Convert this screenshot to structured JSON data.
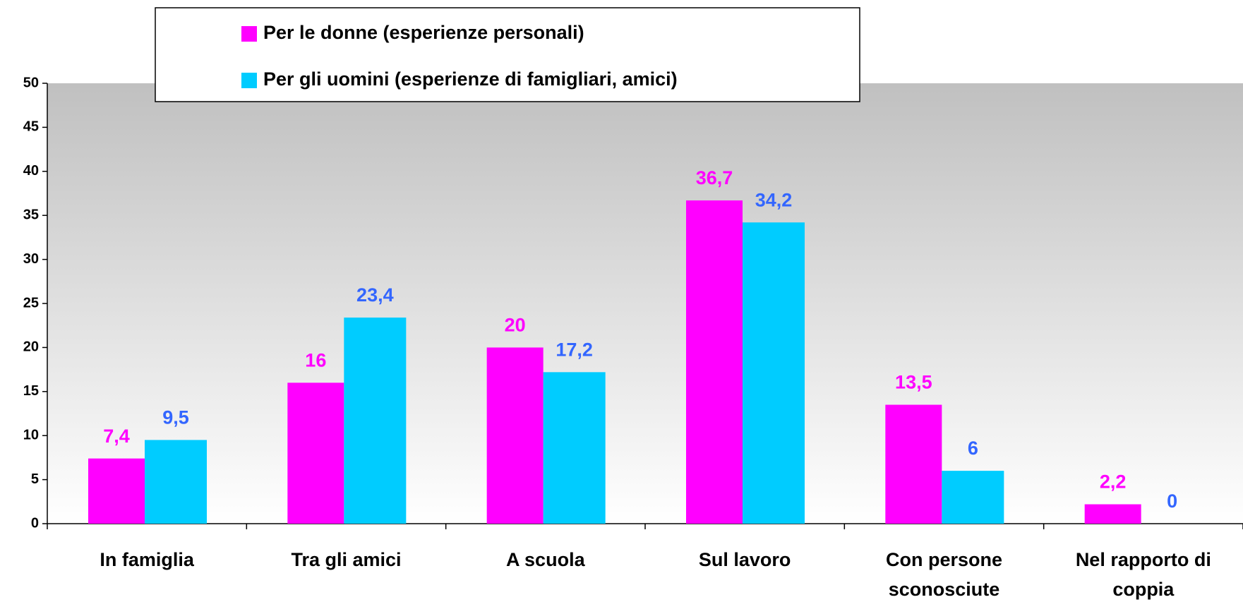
{
  "chart_data": {
    "type": "bar",
    "categories": [
      "In famiglia",
      "Tra gli amici",
      "A scuola",
      "Sul lavoro",
      "Con persone sconosciute",
      "Nel rapporto di coppia"
    ],
    "series": [
      {
        "name": "Per le donne (esperienze personali)",
        "color": "#ff00ff",
        "label_color": "#ff00ff",
        "values": [
          7.4,
          16,
          20,
          36.7,
          13.5,
          2.2
        ],
        "value_labels": [
          "7,4",
          "16",
          "20",
          "36,7",
          "13,5",
          "2,2"
        ]
      },
      {
        "name": "Per gli uomini (esperienze di famigliari, amici)",
        "color": "#00ccff",
        "label_color": "#3366ff",
        "values": [
          9.5,
          23.4,
          17.2,
          34.2,
          6,
          0
        ],
        "value_labels": [
          "9,5",
          "23,4",
          "17,2",
          "34,2",
          "6",
          "0"
        ]
      }
    ],
    "ylim": [
      0,
      50
    ],
    "yticks": [
      0,
      5,
      10,
      15,
      20,
      25,
      30,
      35,
      40,
      45,
      50
    ],
    "grid": false
  }
}
